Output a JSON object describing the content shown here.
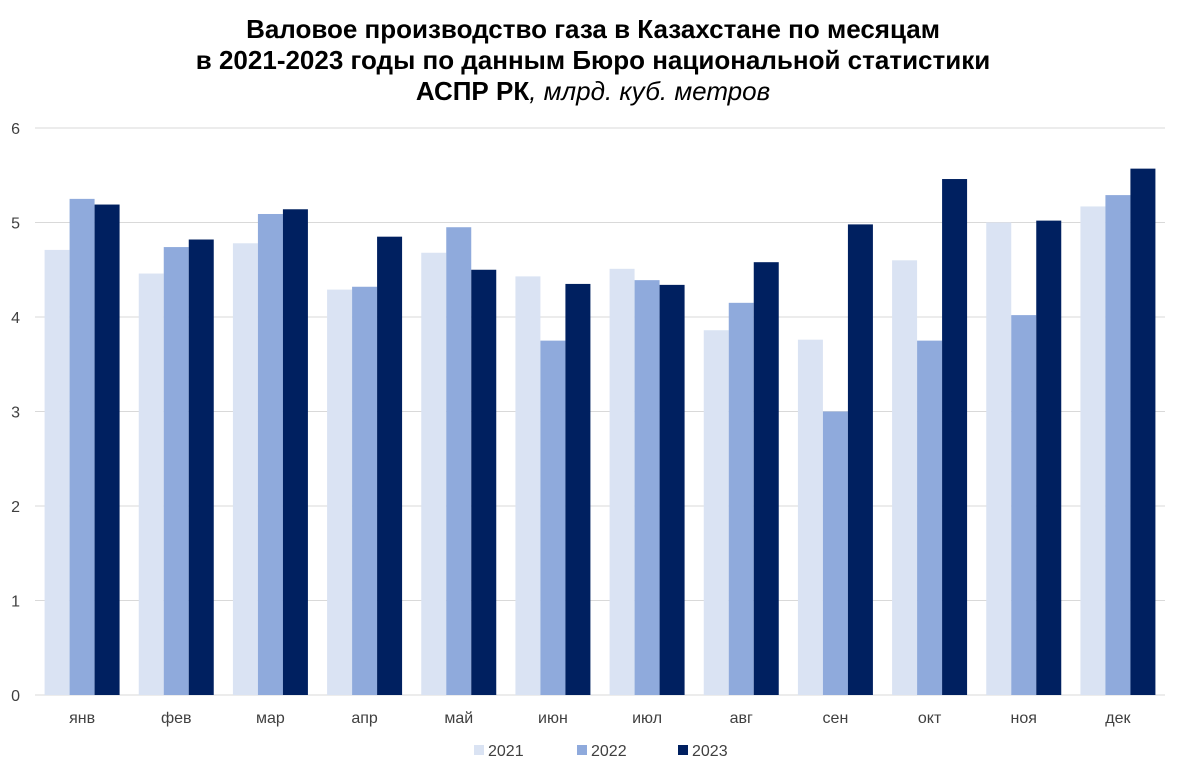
{
  "chart_data": {
    "type": "bar",
    "title_lines": [
      "Валовое производство газа в Казахстане по месяцам",
      "в 2021-2023 годы по данным Бюро национальной статистики"
    ],
    "title_line3_bold": "АСПР РК",
    "title_line3_unit": ", млрд. куб. метров",
    "categories": [
      "янв",
      "фев",
      "мар",
      "апр",
      "май",
      "июн",
      "июл",
      "авг",
      "сен",
      "окт",
      "ноя",
      "дек"
    ],
    "series": [
      {
        "name": "2021",
        "color": "#dae3f3",
        "values": [
          4.71,
          4.46,
          4.78,
          4.29,
          4.68,
          4.43,
          4.51,
          3.86,
          3.76,
          4.6,
          5.0,
          5.17
        ]
      },
      {
        "name": "2022",
        "color": "#8faadc",
        "values": [
          5.25,
          4.74,
          5.09,
          4.32,
          4.95,
          3.75,
          4.39,
          4.15,
          3.0,
          3.75,
          4.02,
          5.29
        ]
      },
      {
        "name": "2023",
        "color": "#002060",
        "values": [
          5.19,
          4.82,
          5.14,
          4.85,
          4.5,
          4.35,
          4.34,
          4.58,
          4.98,
          5.46,
          5.02,
          5.57
        ]
      }
    ],
    "yticks": [
      "0",
      "1",
      "2",
      "3",
      "4",
      "5",
      "6"
    ],
    "ylim": [
      0,
      6
    ],
    "grid": true,
    "legend_position": "bottom"
  }
}
